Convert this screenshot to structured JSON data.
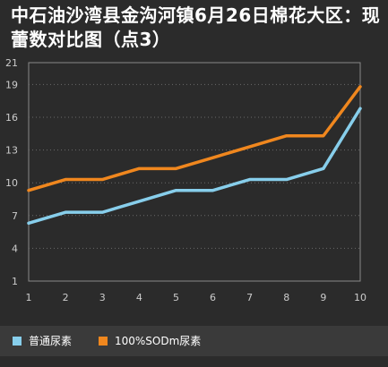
{
  "title": "中石油沙湾县金沟河镇6月26日棉花大区：现蕾数对比图（点3）",
  "chart_data": {
    "type": "line",
    "title": "中石油沙湾县金沟河镇6月26日棉花大区：现蕾数对比图（点3）",
    "x": [
      1,
      2,
      3,
      4,
      5,
      6,
      7,
      8,
      9,
      10
    ],
    "y_ticks": [
      1,
      4,
      7,
      10,
      13,
      16,
      19,
      21
    ],
    "ylim": [
      1,
      21
    ],
    "grid": true,
    "legend_position": "bottom",
    "series": [
      {
        "name": "普通尿素",
        "color": "#87ceeb",
        "values": [
          6.3,
          7.3,
          7.3,
          8.3,
          9.3,
          9.3,
          10.3,
          10.3,
          11.3,
          16.8
        ]
      },
      {
        "name": "100%SODm尿素",
        "color": "#f0871e",
        "values": [
          9.3,
          10.3,
          10.3,
          11.3,
          11.3,
          12.3,
          13.3,
          14.3,
          14.3,
          18.8
        ]
      }
    ]
  },
  "colors": {
    "background": "#2b2b2b",
    "grid": "#6a6a6a",
    "axis_text": "#cccccc"
  }
}
